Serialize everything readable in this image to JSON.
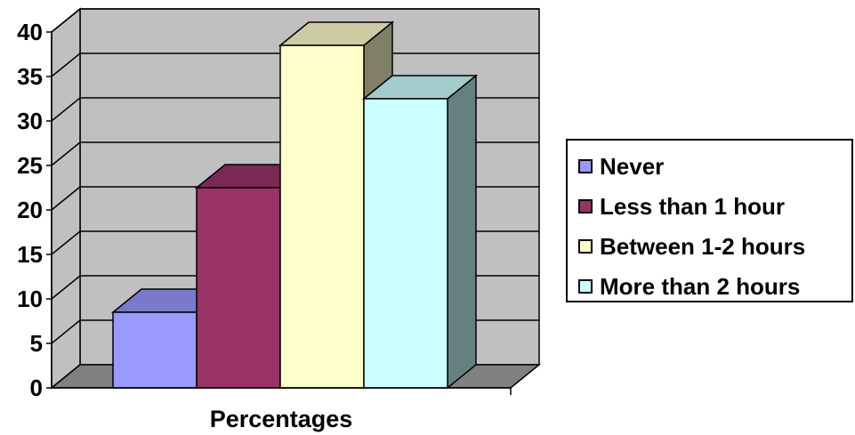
{
  "chart_data": {
    "type": "bar",
    "style": "3d-clustered-column",
    "categories": [
      "Percentages"
    ],
    "series": [
      {
        "name": "Never",
        "values": [
          8.5
        ],
        "color": "#9999ff"
      },
      {
        "name": "Less than 1 hour",
        "values": [
          22.5
        ],
        "color": "#993366"
      },
      {
        "name": "Between 1-2 hours",
        "values": [
          38.5
        ],
        "color": "#ffffcc"
      },
      {
        "name": "More than 2 hours",
        "values": [
          32.5
        ],
        "color": "#ccffff"
      }
    ],
    "xlabel": "Percentages",
    "ylabel": "",
    "ylim": [
      0,
      40
    ],
    "yticks": [
      "0",
      "5",
      "10",
      "15",
      "20",
      "25",
      "30",
      "35",
      "40"
    ],
    "grid": true,
    "legend_position": "right",
    "wall_color": "#c0c0c0",
    "floor_color": "#808080"
  }
}
